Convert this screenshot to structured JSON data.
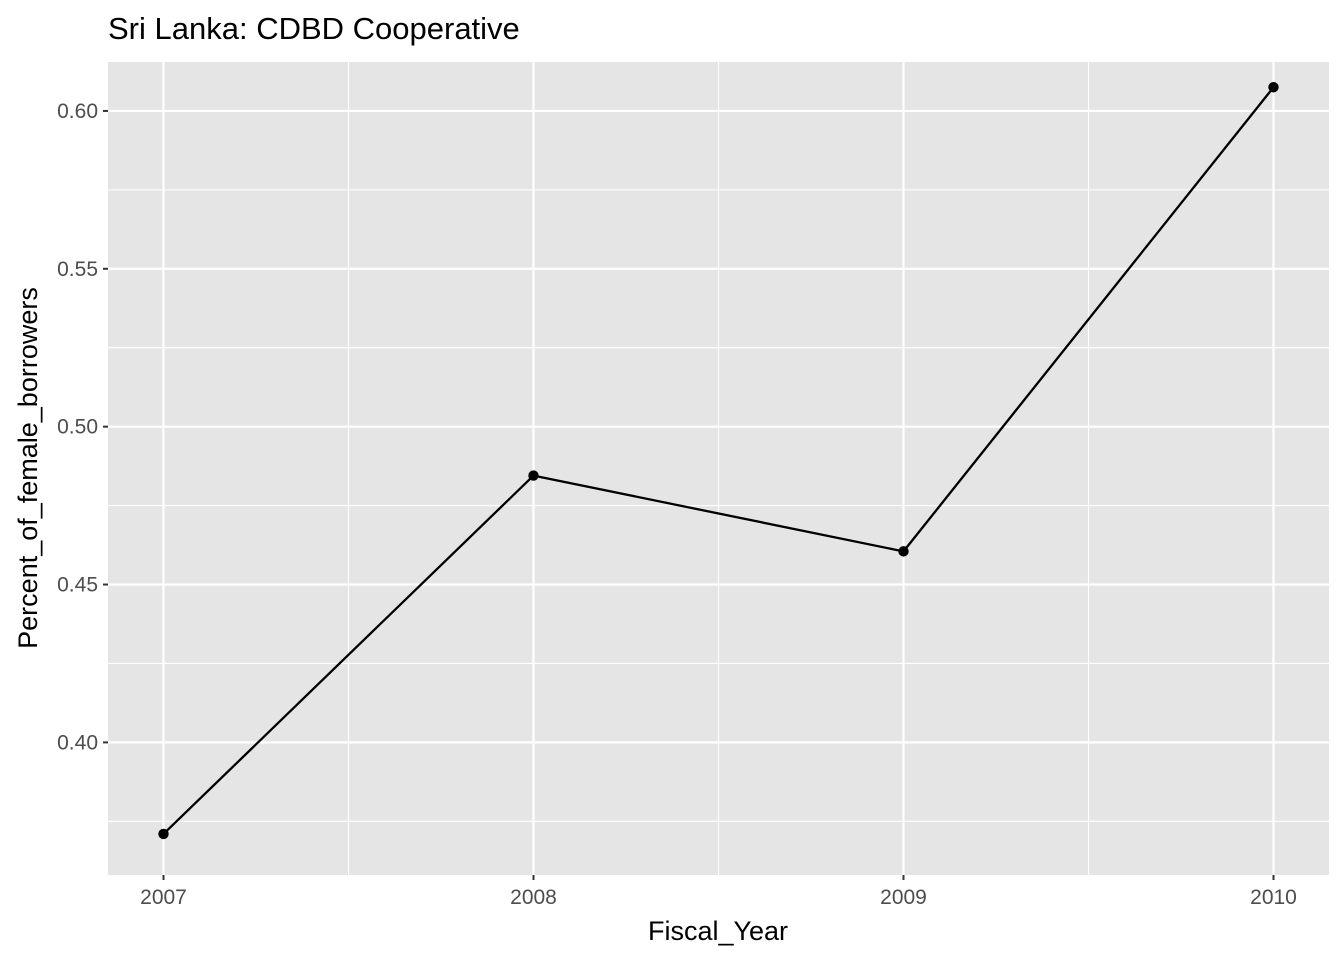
{
  "chart_data": {
    "type": "line",
    "title": "Sri Lanka:  CDBD Cooperative",
    "xlabel": "Fiscal_Year",
    "ylabel": "Percent_of_female_borrowers",
    "x": [
      2007,
      2008,
      2009,
      2010
    ],
    "x_ticks": [
      "2007",
      "2008",
      "2009",
      "2010"
    ],
    "y_ticks": [
      "0.40",
      "0.45",
      "0.50",
      "0.55",
      "0.60"
    ],
    "series": [
      {
        "values": [
          0.371,
          0.4845,
          0.4605,
          0.6075
        ]
      }
    ],
    "xlim": [
      2006.85,
      2010.15
    ],
    "ylim": [
      0.358,
      0.6155
    ],
    "grid": true,
    "colors": {
      "panel": "#e5e5e5",
      "grid": "#ffffff",
      "line": "#000000",
      "tick_text": "#4d4d4d",
      "tick_mark": "#333333"
    }
  }
}
